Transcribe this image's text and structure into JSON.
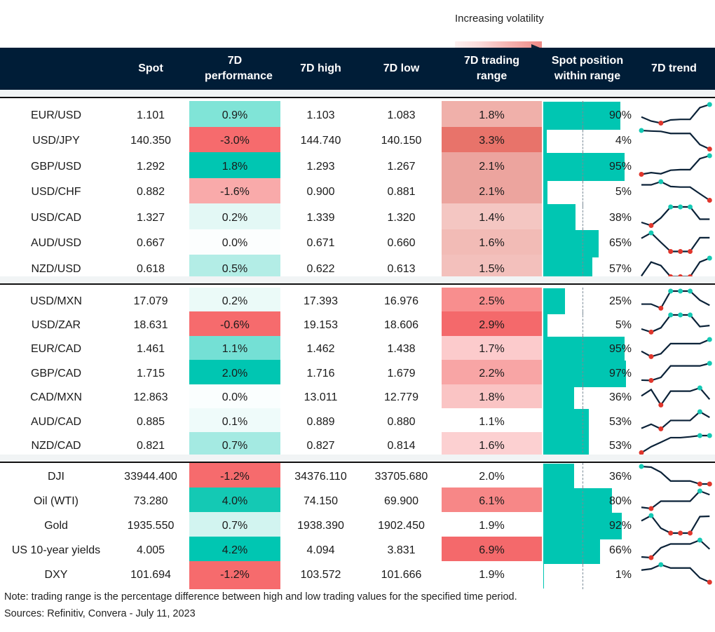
{
  "legend": {
    "label": "Increasing volatility"
  },
  "colors": {
    "header_bg": "#001d37",
    "bar": "#00c6b2",
    "marker_high": "#14c9b4",
    "marker_low": "#e0362c",
    "line": "#0b2238"
  },
  "chart_data": {
    "type": "table",
    "columns": [
      "",
      "Spot",
      "7D performance",
      "7D high",
      "7D low",
      "7D trading range",
      "Spot position within range",
      "7D trend"
    ],
    "groups": [
      {
        "rows": [
          {
            "name": "EUR/USD",
            "spot": "1.101",
            "perf": "0.9%",
            "perf_color": "#80e4d7",
            "high": "1.103",
            "low": "1.083",
            "range": "1.8%",
            "range_color": "#f0b0aa",
            "position": 90,
            "trend": [
              0.33,
              0.11,
              0,
              0.17,
              0.2,
              0.2,
              0.83,
              1
            ]
          },
          {
            "name": "USD/JPY",
            "spot": "140.350",
            "perf": "-3.0%",
            "perf_color": "#f66b6d",
            "high": "144.740",
            "low": "140.150",
            "range": "3.3%",
            "range_color": "#e8736a",
            "position": 4,
            "trend": [
              1,
              0.97,
              0.95,
              0.84,
              0.84,
              0.84,
              0.24,
              0
            ]
          },
          {
            "name": "GBP/USD",
            "spot": "1.292",
            "perf": "1.8%",
            "perf_color": "#00c6b2",
            "high": "1.293",
            "low": "1.267",
            "range": "2.1%",
            "range_color": "#eca49e",
            "position": 95,
            "trend": [
              0,
              0.09,
              0.03,
              0.22,
              0.25,
              0.25,
              0.84,
              1
            ]
          },
          {
            "name": "USD/CHF",
            "spot": "0.882",
            "perf": "-1.6%",
            "perf_color": "#f9aaaa",
            "high": "0.900",
            "low": "0.881",
            "range": "2.1%",
            "range_color": "#eca49e",
            "position": 5,
            "trend": [
              0.83,
              0.83,
              1,
              0.74,
              0.71,
              0.71,
              0.35,
              0
            ]
          },
          {
            "name": "USD/CAD",
            "spot": "1.327",
            "perf": "0.2%",
            "perf_color": "#e3f8f5",
            "high": "1.339",
            "low": "1.320",
            "range": "1.4%",
            "range_color": "#f4c6c2",
            "position": 38,
            "trend": [
              0.17,
              0,
              0.41,
              1,
              1,
              1,
              0.34,
              0.34
            ]
          },
          {
            "name": "AUD/USD",
            "spot": "0.667",
            "perf": "0.0%",
            "perf_color": "#fcfefe",
            "high": "0.671",
            "low": "0.660",
            "range": "1.6%",
            "range_color": "#f2bbb6",
            "position": 65,
            "trend": [
              0.71,
              1,
              0.49,
              0,
              0,
              0,
              0.74,
              0.74
            ]
          },
          {
            "name": "NZD/USD",
            "spot": "0.618",
            "perf": "0.5%",
            "perf_color": "#b3ede6",
            "high": "0.622",
            "low": "0.613",
            "range": "1.5%",
            "range_color": "#f3c0bc",
            "position": 57,
            "trend": [
              0.04,
              0.79,
              0.6,
              0,
              0,
              0,
              0.79,
              1
            ]
          }
        ]
      },
      {
        "rows": [
          {
            "name": "USD/MXN",
            "spot": "17.079",
            "perf": "0.2%",
            "perf_color": "#ebfaf8",
            "high": "17.393",
            "low": "16.976",
            "range": "2.5%",
            "range_color": "#f88e8e",
            "position": 25,
            "trend": [
              0.24,
              0.24,
              0,
              1,
              1,
              1,
              0.47,
              0.17
            ]
          },
          {
            "name": "USD/ZAR",
            "spot": "18.631",
            "perf": "-0.6%",
            "perf_color": "#f66b6d",
            "high": "19.153",
            "low": "18.606",
            "range": "2.9%",
            "range_color": "#f4696b",
            "position": 5,
            "trend": [
              0.18,
              0,
              0.25,
              1,
              1,
              1,
              0.32,
              0.38
            ]
          },
          {
            "name": "EUR/CAD",
            "spot": "1.461",
            "perf": "1.1%",
            "perf_color": "#74e0d5",
            "high": "1.462",
            "low": "1.438",
            "range": "1.7%",
            "range_color": "#fccbcc",
            "position": 95,
            "trend": [
              0.31,
              0,
              0.17,
              0.76,
              0.76,
              0.76,
              0.76,
              1
            ]
          },
          {
            "name": "GBP/CAD",
            "spot": "1.715",
            "perf": "2.0%",
            "perf_color": "#00c6b2",
            "high": "1.716",
            "low": "1.679",
            "range": "2.2%",
            "range_color": "#f8a5a5",
            "position": 97,
            "trend": [
              0.02,
              0,
              0.18,
              0.85,
              0.85,
              0.85,
              0.85,
              1
            ]
          },
          {
            "name": "CAD/MXN",
            "spot": "12.863",
            "perf": "0.0%",
            "perf_color": "#fafefe",
            "high": "13.011",
            "low": "12.779",
            "range": "1.8%",
            "range_color": "#fac4c4",
            "position": 36,
            "trend": [
              0.53,
              0.9,
              0,
              0.81,
              0.81,
              0.81,
              1,
              0.33
            ]
          },
          {
            "name": "AUD/CAD",
            "spot": "0.885",
            "perf": "0.1%",
            "perf_color": "#effbfa",
            "high": "0.889",
            "low": "0.880",
            "range": "1.1%",
            "range_color": "#ffffff",
            "position": 53,
            "trend": [
              0.03,
              0.27,
              0,
              0.49,
              0.49,
              0.49,
              1,
              0.67
            ]
          },
          {
            "name": "NZD/CAD",
            "spot": "0.821",
            "perf": "0.7%",
            "perf_color": "#a4eae2",
            "high": "0.827",
            "low": "0.814",
            "range": "1.6%",
            "range_color": "#fcd0d1",
            "position": 53,
            "trend": [
              0,
              0.35,
              0.61,
              0.88,
              0.88,
              0.93,
              1,
              1
            ]
          }
        ]
      },
      {
        "rows": [
          {
            "name": "DJI",
            "spot": "33944.400",
            "perf": "-1.2%",
            "perf_color": "#f66b6d",
            "high": "34376.110",
            "low": "33705.680",
            "range": "2.0%",
            "range_color": "#ffffff",
            "position": 36,
            "trend": [
              1,
              0.96,
              0.67,
              0.17,
              0.17,
              0.17,
              0,
              0
            ]
          },
          {
            "name": "Oil (WTI)",
            "spot": "73.280",
            "perf": "4.0%",
            "perf_color": "#14c9b4",
            "high": "74.150",
            "low": "69.900",
            "range": "6.1%",
            "range_color": "#f78787",
            "position": 80,
            "trend": [
              0.07,
              0,
              0.42,
              0.42,
              0.42,
              0.42,
              1,
              0.79
            ]
          },
          {
            "name": "Gold",
            "spot": "1935.550",
            "perf": "0.7%",
            "perf_color": "#d2f4f0",
            "high": "1938.390",
            "low": "1902.450",
            "range": "1.9%",
            "range_color": "#ffffff",
            "position": 92,
            "trend": [
              0.7,
              1,
              0.28,
              0,
              0,
              0,
              0.94,
              0.96
            ]
          },
          {
            "name": "US 10-year yields",
            "spot": "4.005",
            "perf": "4.2%",
            "perf_color": "#00c6b2",
            "high": "4.094",
            "low": "3.831",
            "range": "6.9%",
            "range_color": "#f4696b",
            "position": 66,
            "trend": [
              0.04,
              0,
              0.56,
              0.78,
              0.78,
              0.78,
              1,
              0.49
            ]
          },
          {
            "name": "DXY",
            "spot": "101.694",
            "perf": "-1.2%",
            "perf_color": "#f66b6d",
            "high": "103.572",
            "low": "101.666",
            "range": "1.9%",
            "range_color": "#ffffff",
            "position": 1,
            "trend": [
              0.69,
              0.76,
              1,
              0.81,
              0.81,
              0.81,
              0.25,
              0
            ]
          }
        ]
      }
    ]
  },
  "footer": {
    "note": "Note: trading range is the percentage difference between high and low trading values for the specified time period.",
    "sources": "Sources: Refinitiv, Convera - July 11, 2023"
  }
}
